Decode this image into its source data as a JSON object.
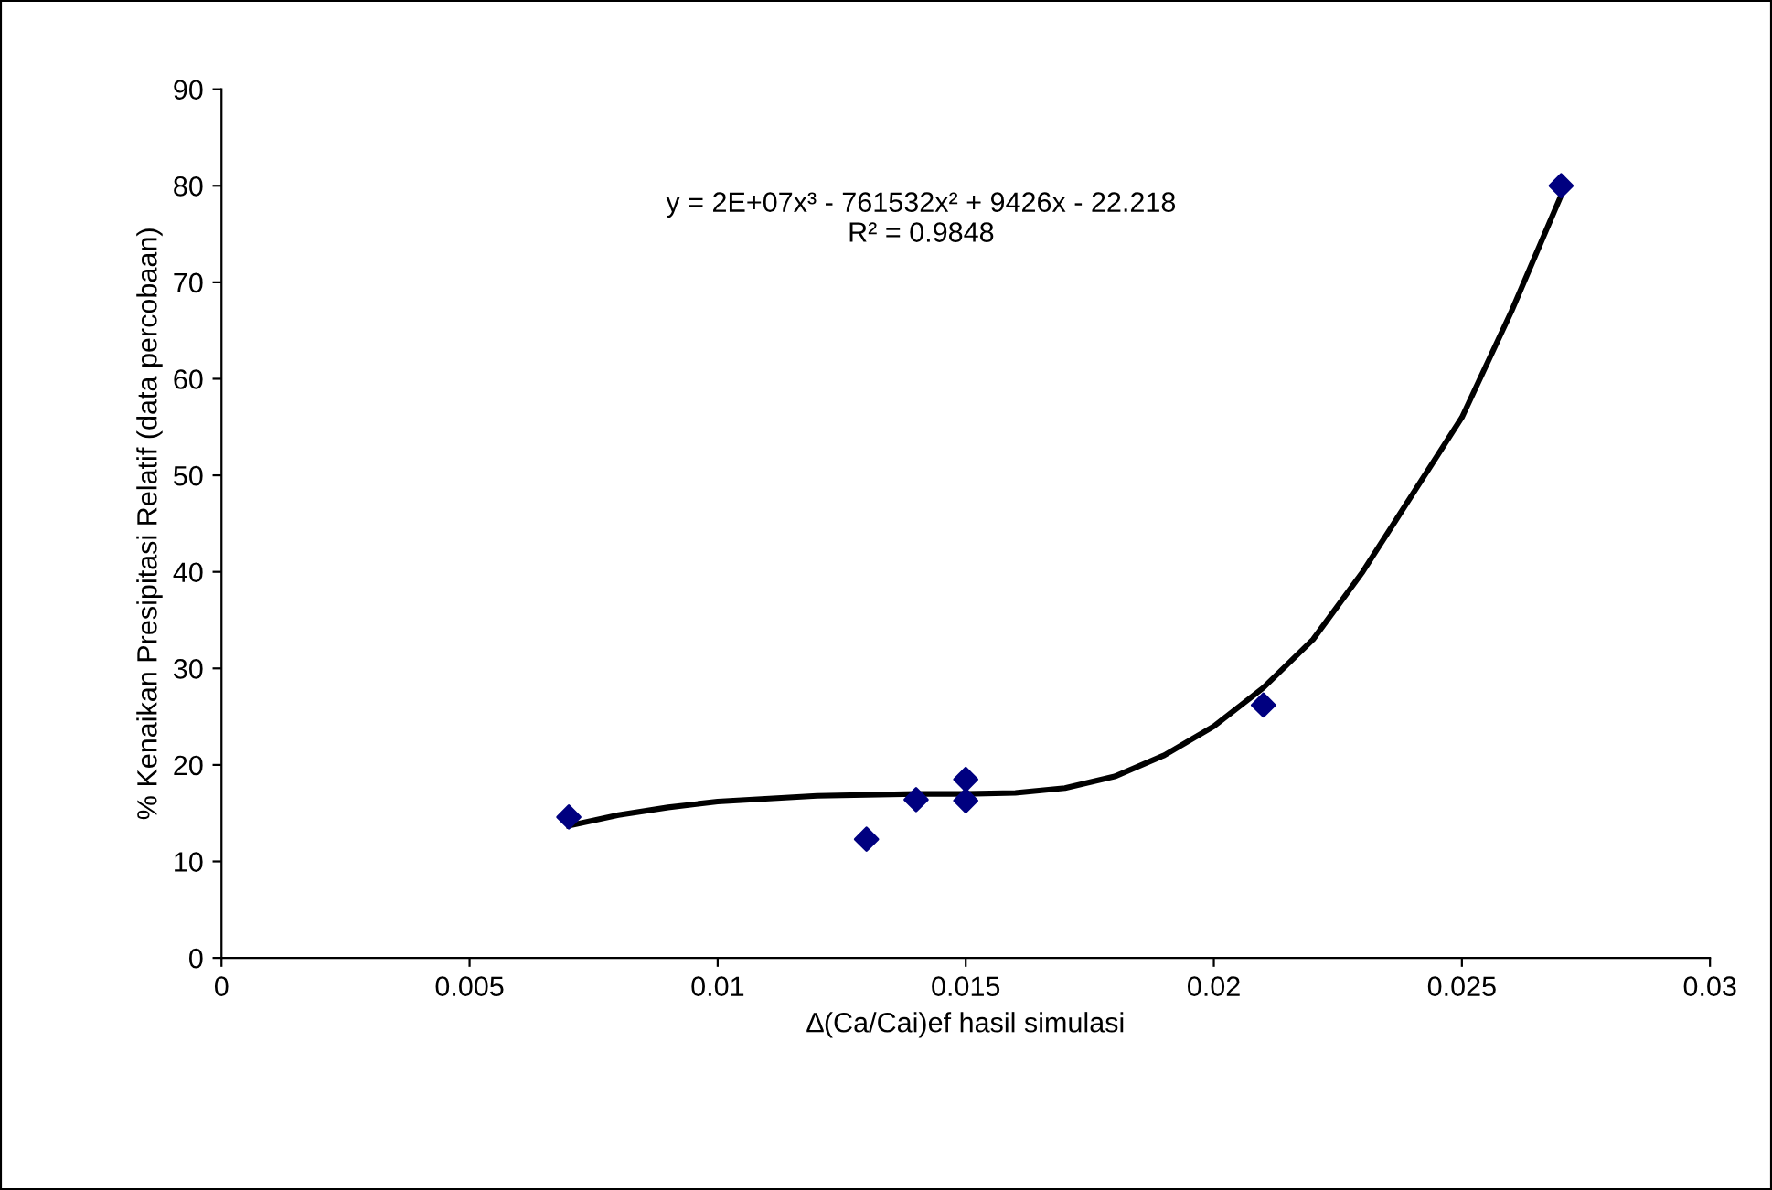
{
  "chart_data": {
    "type": "scatter",
    "xlabel": "∆(Ca/Cai)ef hasil simulasi",
    "ylabel": "% Kenaikan Presipitasi Relatif (data percobaan)",
    "xlim": [
      0,
      0.03
    ],
    "xticks": [
      0,
      0.005,
      0.01,
      0.015,
      0.02,
      0.025,
      0.03
    ],
    "ylim": [
      0,
      90
    ],
    "yticks": [
      0,
      10,
      20,
      30,
      40,
      50,
      60,
      70,
      80,
      90
    ],
    "grid": false,
    "legend": false,
    "marker": "diamond",
    "series": [
      {
        "color": "#000080",
        "x": [
          0.007,
          0.013,
          0.014,
          0.015,
          0.015,
          0.021,
          0.027
        ],
        "values": [
          14.6,
          12.3,
          16.4,
          18.5,
          16.3,
          26.2,
          80
        ]
      },
      {
        "type": "line",
        "color": "#000000",
        "marker": "none",
        "line_style": "solid",
        "x": [
          0.007,
          0.008,
          0.009,
          0.01,
          0.012,
          0.014,
          0.015,
          0.016,
          0.017,
          0.018,
          0.019,
          0.02,
          0.021,
          0.022,
          0.023,
          0.024,
          0.025,
          0.026,
          0.027
        ],
        "values": [
          13.7,
          14.8,
          15.6,
          16.2,
          16.8,
          17,
          17,
          17.1,
          17.6,
          18.8,
          21,
          24,
          28,
          33,
          40,
          48,
          56,
          67,
          79
        ]
      }
    ],
    "annotations": [
      "y = 2E+07x³ - 761532x² + 9426x - 22.218\nR² = 0.9848"
    ]
  }
}
